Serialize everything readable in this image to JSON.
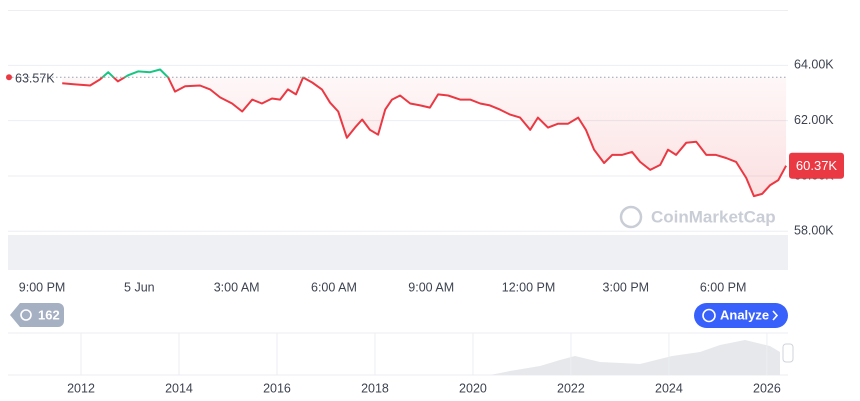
{
  "chart_data": {
    "type": "line",
    "x": [
      0.62,
      1.02,
      1.48,
      1.79,
      2.04,
      2.34,
      2.65,
      2.96,
      3.33,
      3.64,
      3.89,
      4.1,
      4.41,
      4.87,
      5.18,
      5.49,
      5.86,
      6.17,
      6.48,
      6.78,
      7.09,
      7.34,
      7.58,
      7.83,
      8.05,
      8.33,
      8.63,
      8.88,
      9.13,
      9.4,
      9.65,
      9.87,
      10.11,
      10.36,
      10.58,
      10.79,
      11.04,
      11.35,
      11.66,
      11.96,
      12.21,
      12.52,
      12.89,
      13.2,
      13.51,
      13.81,
      14.12,
      14.43,
      14.74,
      15.05,
      15.29,
      15.6,
      15.91,
      16.22,
      16.53,
      16.77,
      17.02,
      17.33,
      17.58,
      17.88,
      18.19,
      18.44,
      18.75,
      19.06,
      19.3,
      19.55,
      19.86,
      20.17,
      20.48,
      20.78,
      21.09,
      21.4,
      21.71,
      21.95,
      22.2,
      22.45,
      22.7,
      22.94
    ],
    "values": [
      63350,
      63310,
      63270,
      63490,
      63750,
      63420,
      63640,
      63780,
      63750,
      63850,
      63560,
      63050,
      63240,
      63270,
      63130,
      62840,
      62620,
      62330,
      62760,
      62620,
      62800,
      62760,
      63130,
      62950,
      63560,
      63380,
      63130,
      62650,
      62330,
      61380,
      61750,
      62040,
      61670,
      61490,
      62400,
      62760,
      62910,
      62620,
      62550,
      62470,
      62950,
      62910,
      62760,
      62760,
      62620,
      62550,
      62400,
      62220,
      62110,
      61670,
      62110,
      61750,
      61890,
      61890,
      62110,
      61670,
      60950,
      60470,
      60760,
      60760,
      60870,
      60510,
      60220,
      60400,
      60950,
      60760,
      61200,
      61240,
      60760,
      60760,
      60650,
      60510,
      59930,
      59270,
      59350,
      59670,
      59850,
      60370
    ],
    "up_color": "#16c784",
    "down_color": "#ea3943",
    "reference_line": {
      "value": 63570,
      "label": "63.57K"
    },
    "current_price": {
      "value": 60370,
      "label": "60.37K"
    },
    "xlim": [
      -1.05,
      23.0
    ],
    "xticks": [
      {
        "value": 0,
        "label": "9:00 PM"
      },
      {
        "value": 3,
        "label": "5 Jun"
      },
      {
        "value": 6,
        "label": "3:00 AM"
      },
      {
        "value": 9,
        "label": "6:00 AM"
      },
      {
        "value": 12,
        "label": "9:00 AM"
      },
      {
        "value": 15,
        "label": "12:00 PM"
      },
      {
        "value": 18,
        "label": "3:00 PM"
      },
      {
        "value": 21,
        "label": "6:00 PM"
      }
    ],
    "ylim": [
      56600,
      66000
    ],
    "yticks": [
      {
        "value": 58000,
        "label": "58.00K"
      },
      {
        "value": 60000,
        "label": "60.00K"
      },
      {
        "value": 62000,
        "label": "62.00K"
      },
      {
        "value": 64000,
        "label": "64.00K"
      }
    ],
    "grid": true,
    "watermark": "CoinMarketCap",
    "badge": "162",
    "button": "Analyze",
    "navigator": {
      "xlim": [
        2010.51,
        2026.43
      ],
      "xticks": [
        2012,
        2014,
        2016,
        2018,
        2020,
        2022,
        2024,
        2026
      ]
    }
  }
}
